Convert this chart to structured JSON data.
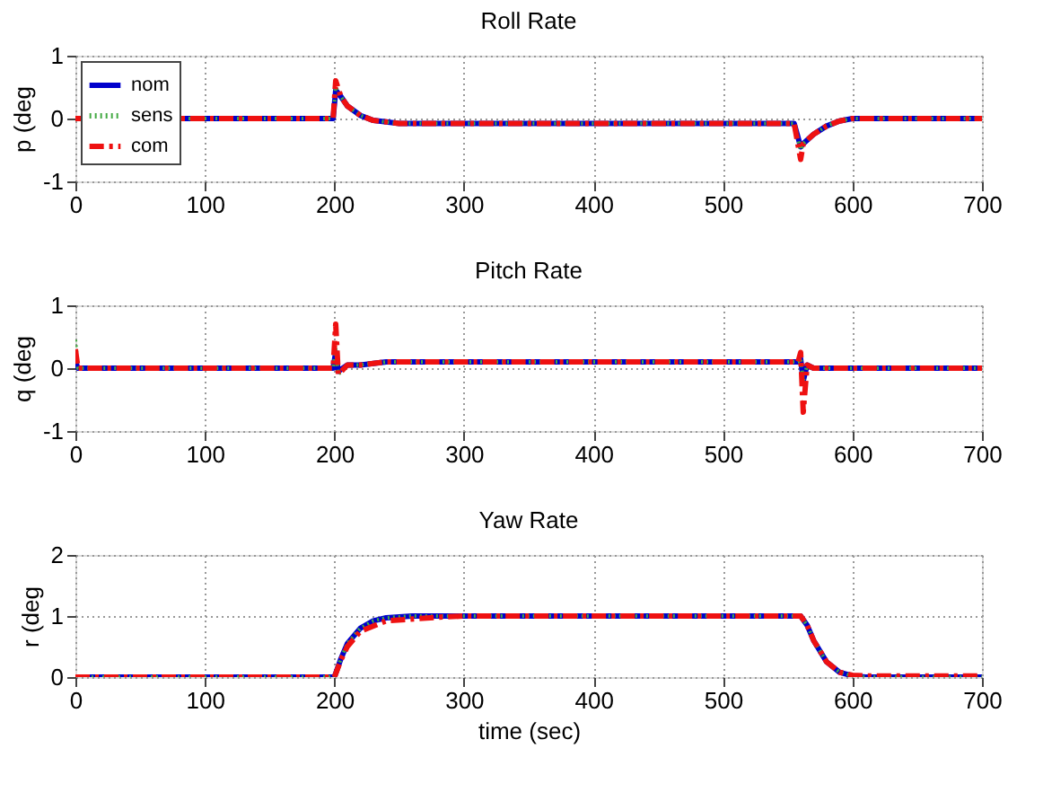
{
  "chart_data": [
    {
      "type": "line",
      "title": "Roll Rate",
      "ylabel": "p (deg",
      "xlim": [
        0,
        700
      ],
      "xticks": [
        0,
        100,
        200,
        300,
        400,
        500,
        600,
        700
      ],
      "ylim": [
        -1,
        1
      ],
      "yticks": [
        -1,
        0,
        1
      ],
      "grid": true,
      "legend": "top left",
      "series": [
        {
          "name": "nom",
          "color": "#0000cc",
          "line_style": "solid",
          "x": [
            0,
            199,
            201,
            205,
            210,
            220,
            230,
            250,
            555,
            560,
            562,
            570,
            580,
            590,
            600,
            700
          ],
          "values": [
            0,
            0,
            0.45,
            0.35,
            0.2,
            0.05,
            -0.03,
            -0.08,
            -0.08,
            -0.45,
            -0.4,
            -0.25,
            -0.12,
            -0.04,
            0,
            0
          ]
        },
        {
          "name": "sens",
          "color": "#44aa44",
          "line_style": "dotted",
          "x": [
            0,
            199,
            201,
            205,
            210,
            220,
            230,
            250,
            555,
            560,
            562,
            570,
            580,
            590,
            600,
            700
          ],
          "values": [
            0,
            0,
            0.5,
            0.35,
            0.2,
            0.05,
            -0.03,
            -0.08,
            -0.08,
            -0.5,
            -0.4,
            -0.25,
            -0.12,
            -0.04,
            0,
            0
          ]
        },
        {
          "name": "com",
          "color": "#ee1111",
          "line_style": "dashed",
          "x": [
            0,
            199,
            201,
            205,
            210,
            220,
            230,
            250,
            555,
            560,
            562,
            570,
            580,
            590,
            600,
            700
          ],
          "values": [
            0,
            0,
            0.6,
            0.35,
            0.2,
            0.05,
            -0.03,
            -0.08,
            -0.08,
            -0.65,
            -0.4,
            -0.25,
            -0.12,
            -0.04,
            0,
            0
          ]
        }
      ]
    },
    {
      "type": "line",
      "title": "Pitch Rate",
      "ylabel": "q (deg",
      "xlim": [
        0,
        700
      ],
      "xticks": [
        0,
        100,
        200,
        300,
        400,
        500,
        600,
        700
      ],
      "ylim": [
        -1,
        1
      ],
      "yticks": [
        -1,
        0,
        1
      ],
      "grid": true,
      "series": [
        {
          "color": "#0000cc",
          "line_style": "solid",
          "x": [
            0,
            2,
            199,
            201,
            203,
            210,
            220,
            240,
            558,
            560,
            562,
            565,
            570,
            700
          ],
          "values": [
            0.1,
            0,
            0,
            0.25,
            -0.05,
            0.05,
            0.05,
            0.1,
            0.1,
            0.15,
            -0.2,
            0.05,
            0,
            0
          ]
        },
        {
          "color": "#44aa44",
          "line_style": "dotted",
          "x": [
            0,
            2,
            199,
            201,
            203,
            210,
            220,
            240,
            558,
            560,
            562,
            565,
            570,
            700
          ],
          "values": [
            0.45,
            0,
            0,
            0.3,
            -0.1,
            0.05,
            0.05,
            0.1,
            0.1,
            0.15,
            -0.2,
            0.05,
            0,
            0
          ]
        },
        {
          "color": "#ee1111",
          "line_style": "dashed",
          "x": [
            0,
            2,
            199,
            201,
            203,
            210,
            220,
            240,
            558,
            560,
            562,
            565,
            570,
            700
          ],
          "values": [
            0.3,
            0,
            0,
            0.7,
            -0.1,
            0.05,
            0.05,
            0.1,
            0.1,
            0.25,
            -0.7,
            0.05,
            0,
            0
          ]
        }
      ]
    },
    {
      "type": "line",
      "title": "Yaw Rate",
      "xlabel": "time (sec)",
      "ylabel": "r (deg",
      "xlim": [
        0,
        700
      ],
      "xticks": [
        0,
        100,
        200,
        300,
        400,
        500,
        600,
        700
      ],
      "ylim": [
        0,
        2
      ],
      "yticks": [
        0,
        1,
        2
      ],
      "grid": true,
      "series": [
        {
          "color": "#0000cc",
          "line_style": "solid",
          "x": [
            0,
            200,
            205,
            210,
            220,
            230,
            240,
            260,
            560,
            565,
            570,
            580,
            590,
            600,
            610,
            700
          ],
          "values": [
            0,
            0,
            0.3,
            0.55,
            0.8,
            0.92,
            0.97,
            1.0,
            1.0,
            0.85,
            0.6,
            0.25,
            0.08,
            0.02,
            0,
            0
          ]
        },
        {
          "color": "#44aa44",
          "line_style": "dotted",
          "x": [
            0,
            200,
            205,
            210,
            220,
            230,
            240,
            260,
            560,
            565,
            570,
            580,
            590,
            600,
            610,
            700
          ],
          "values": [
            0,
            0,
            0.3,
            0.55,
            0.8,
            0.92,
            0.97,
            1.0,
            1.0,
            0.85,
            0.6,
            0.25,
            0.08,
            0.02,
            0,
            0
          ]
        },
        {
          "color": "#ee1111",
          "line_style": "dashed",
          "x": [
            0,
            200,
            205,
            210,
            220,
            240,
            280,
            300,
            560,
            565,
            570,
            580,
            590,
            600,
            610,
            700
          ],
          "values": [
            0,
            0,
            0.28,
            0.5,
            0.75,
            0.92,
            0.98,
            1.0,
            1.0,
            0.85,
            0.6,
            0.25,
            0.08,
            0.03,
            0.02,
            0.02
          ]
        }
      ]
    }
  ]
}
